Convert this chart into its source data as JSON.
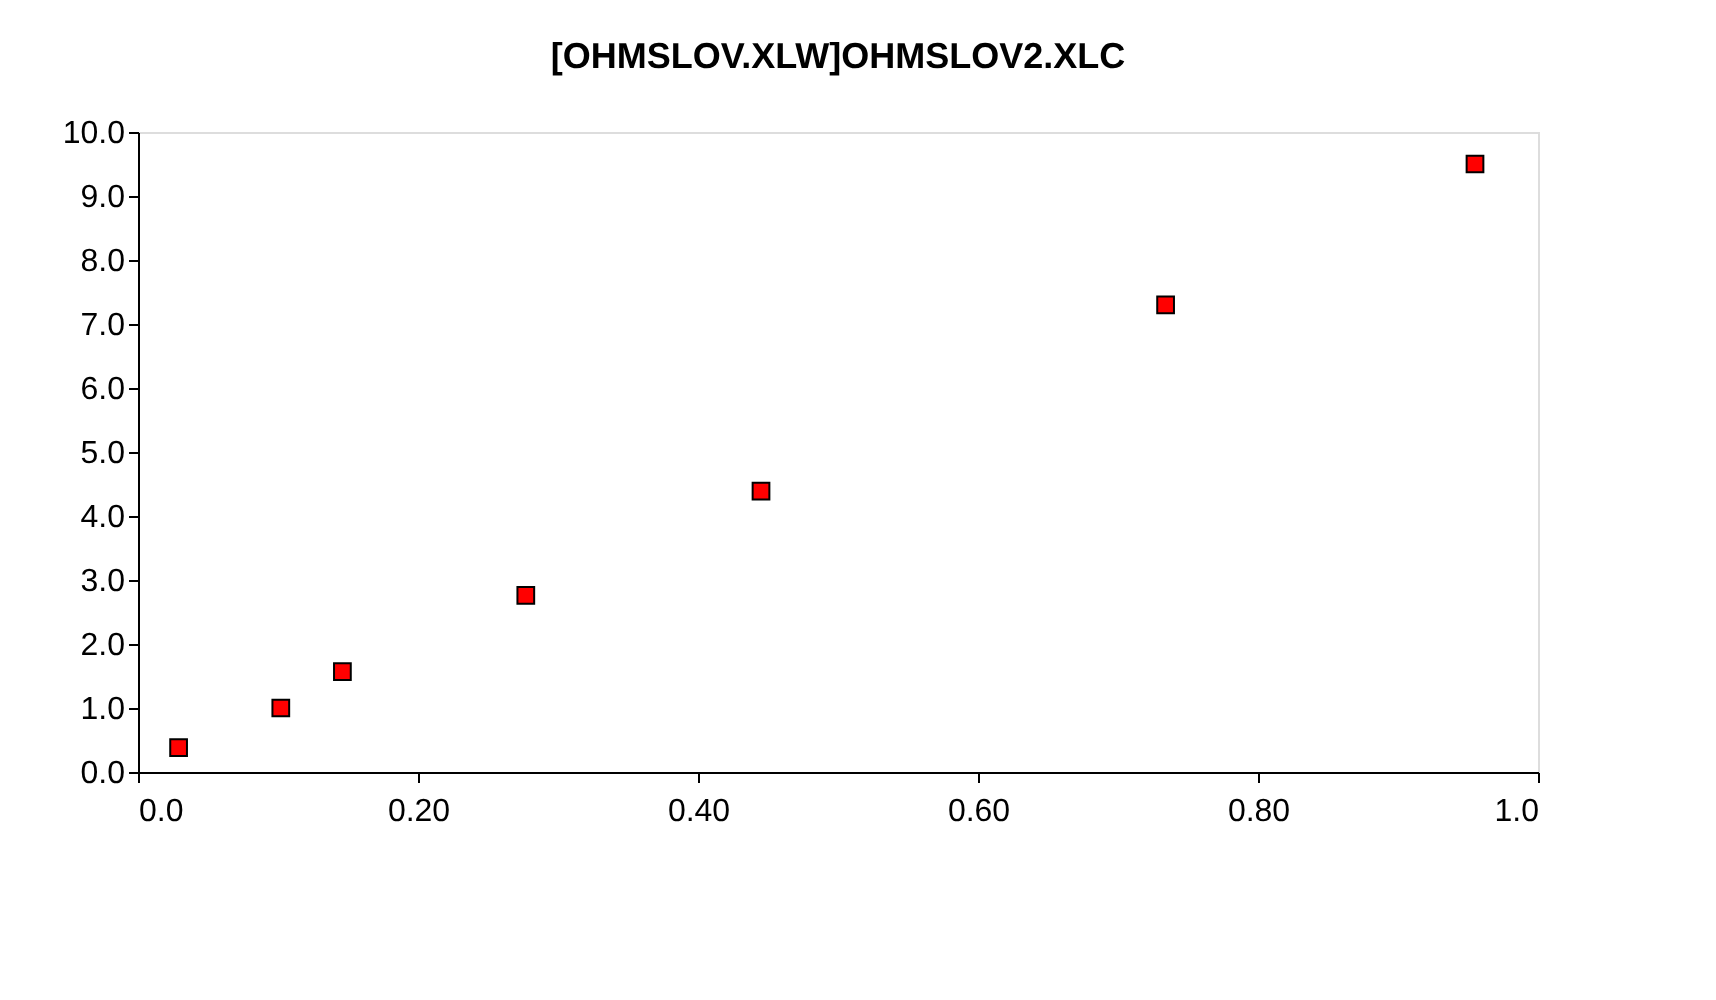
{
  "chart_data": {
    "type": "scatter",
    "title": "[OHMSLOV.XLW]OHMSLOV2.XLC",
    "x": [
      0.029,
      0.102,
      0.146,
      0.277,
      0.445,
      0.734,
      0.955
    ],
    "series": [
      {
        "color": "#ff0000",
        "values": [
          0.38,
          1.0,
          1.57,
          2.76,
          4.39,
          7.3,
          9.5
        ]
      }
    ],
    "marker": "square",
    "grid": false,
    "xlim": [
      0,
      1.0
    ],
    "ylim": [
      0,
      10.0
    ],
    "xticks": [
      {
        "value": 0,
        "label": "0.0"
      },
      {
        "value": 0.2,
        "label": "0.20"
      },
      {
        "value": 0.4,
        "label": "0.40"
      },
      {
        "value": 0.6,
        "label": "0.60"
      },
      {
        "value": 0.8,
        "label": "0.80"
      },
      {
        "value": 1.0,
        "label": "1.0"
      }
    ],
    "yticks": [
      {
        "value": 0,
        "label": "0.0"
      },
      {
        "value": 1,
        "label": "1.0"
      },
      {
        "value": 2,
        "label": "2.0"
      },
      {
        "value": 3,
        "label": "3.0"
      },
      {
        "value": 4,
        "label": "4.0"
      },
      {
        "value": 5,
        "label": "5.0"
      },
      {
        "value": 6,
        "label": "6.0"
      },
      {
        "value": 7,
        "label": "7.0"
      },
      {
        "value": 8,
        "label": "8.0"
      },
      {
        "value": 9,
        "label": "9.0"
      },
      {
        "value": 10,
        "label": "10.0"
      }
    ]
  }
}
